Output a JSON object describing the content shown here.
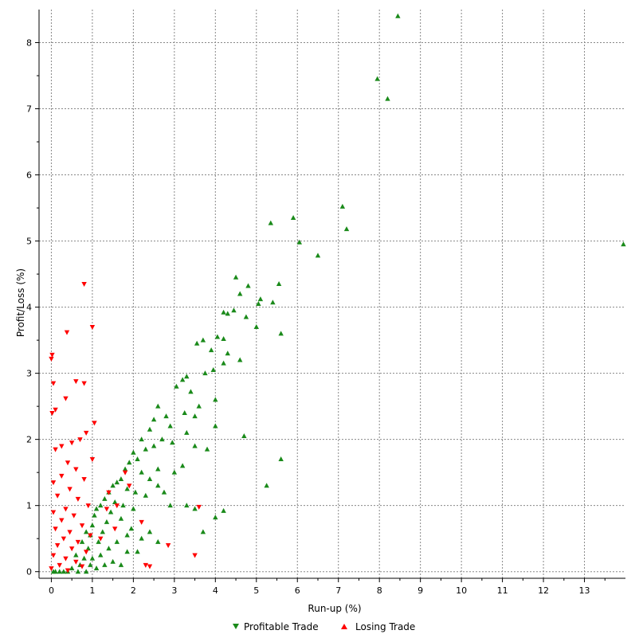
{
  "chart_data": {
    "type": "scatter",
    "xlabel": "Run-up (%)",
    "ylabel": "Profit/Loss (%)",
    "xlim": [
      -0.3,
      14.0
    ],
    "ylim": [
      -0.1,
      8.5
    ],
    "xticks": [
      0,
      1,
      2,
      3,
      4,
      5,
      6,
      7,
      8,
      9,
      10,
      11,
      12,
      13
    ],
    "yticks": [
      0,
      1,
      2,
      3,
      4,
      5,
      6,
      7,
      8
    ],
    "grid": true,
    "legend_position": "bottom",
    "colors": {
      "profitable": "#1a8a1a",
      "losing": "#ff0000",
      "grid": "#888888",
      "axis": "#000000"
    },
    "series": [
      {
        "name": "Profitable Trade",
        "marker": "triangle-up",
        "points": [
          [
            8.45,
            8.4
          ],
          [
            7.95,
            7.45
          ],
          [
            8.2,
            7.15
          ],
          [
            5.9,
            5.35
          ],
          [
            7.1,
            5.52
          ],
          [
            7.2,
            5.18
          ],
          [
            6.05,
            4.98
          ],
          [
            6.5,
            4.78
          ],
          [
            5.35,
            5.27
          ],
          [
            13.95,
            4.95
          ],
          [
            4.5,
            4.45
          ],
          [
            4.8,
            4.32
          ],
          [
            5.55,
            4.35
          ],
          [
            4.6,
            4.2
          ],
          [
            5.1,
            4.12
          ],
          [
            5.05,
            4.05
          ],
          [
            5.4,
            4.07
          ],
          [
            4.2,
            3.92
          ],
          [
            4.3,
            3.9
          ],
          [
            4.45,
            3.95
          ],
          [
            4.75,
            3.85
          ],
          [
            5.0,
            3.7
          ],
          [
            4.05,
            3.55
          ],
          [
            3.7,
            3.5
          ],
          [
            4.2,
            3.52
          ],
          [
            5.6,
            3.6
          ],
          [
            4.6,
            3.2
          ],
          [
            3.55,
            3.45
          ],
          [
            3.9,
            3.35
          ],
          [
            4.3,
            3.3
          ],
          [
            4.2,
            3.15
          ],
          [
            3.75,
            3.0
          ],
          [
            3.95,
            3.05
          ],
          [
            3.3,
            2.95
          ],
          [
            3.2,
            2.9
          ],
          [
            3.05,
            2.8
          ],
          [
            3.4,
            2.72
          ],
          [
            4.0,
            2.6
          ],
          [
            3.6,
            2.5
          ],
          [
            3.25,
            2.4
          ],
          [
            2.8,
            2.35
          ],
          [
            3.5,
            2.35
          ],
          [
            2.6,
            2.5
          ],
          [
            2.5,
            2.3
          ],
          [
            2.9,
            2.2
          ],
          [
            4.0,
            2.2
          ],
          [
            3.3,
            2.1
          ],
          [
            2.4,
            2.15
          ],
          [
            2.7,
            2.0
          ],
          [
            2.95,
            1.95
          ],
          [
            3.5,
            1.9
          ],
          [
            2.2,
            2.0
          ],
          [
            2.3,
            1.85
          ],
          [
            2.5,
            1.9
          ],
          [
            2.0,
            1.8
          ],
          [
            2.1,
            1.7
          ],
          [
            1.9,
            1.65
          ],
          [
            1.8,
            1.55
          ],
          [
            2.2,
            1.5
          ],
          [
            2.6,
            1.55
          ],
          [
            3.2,
            1.6
          ],
          [
            4.7,
            2.05
          ],
          [
            5.6,
            1.7
          ],
          [
            5.25,
            1.3
          ],
          [
            3.8,
            1.85
          ],
          [
            2.4,
            1.4
          ],
          [
            2.6,
            1.3
          ],
          [
            3.0,
            1.5
          ],
          [
            2.75,
            1.2
          ],
          [
            1.7,
            1.4
          ],
          [
            1.6,
            1.35
          ],
          [
            1.5,
            1.3
          ],
          [
            1.85,
            1.25
          ],
          [
            2.05,
            1.2
          ],
          [
            2.3,
            1.15
          ],
          [
            1.4,
            1.2
          ],
          [
            1.3,
            1.1
          ],
          [
            1.55,
            1.05
          ],
          [
            1.75,
            1.0
          ],
          [
            1.2,
            1.0
          ],
          [
            1.1,
            0.95
          ],
          [
            1.45,
            0.9
          ],
          [
            2.0,
            0.95
          ],
          [
            2.9,
            1.0
          ],
          [
            3.3,
            1.0
          ],
          [
            3.5,
            0.95
          ],
          [
            4.2,
            0.92
          ],
          [
            4.0,
            0.82
          ],
          [
            3.7,
            0.6
          ],
          [
            2.4,
            0.6
          ],
          [
            2.6,
            0.45
          ],
          [
            2.2,
            0.5
          ],
          [
            1.95,
            0.65
          ],
          [
            1.7,
            0.8
          ],
          [
            1.85,
            0.55
          ],
          [
            1.6,
            0.45
          ],
          [
            1.35,
            0.75
          ],
          [
            1.25,
            0.6
          ],
          [
            1.05,
            0.85
          ],
          [
            1.0,
            0.7
          ],
          [
            0.95,
            0.55
          ],
          [
            1.15,
            0.45
          ],
          [
            1.4,
            0.35
          ],
          [
            0.9,
            0.35
          ],
          [
            0.85,
            0.6
          ],
          [
            0.75,
            0.45
          ],
          [
            0.8,
            0.2
          ],
          [
            1.0,
            0.2
          ],
          [
            1.2,
            0.25
          ],
          [
            0.7,
            0.1
          ],
          [
            0.6,
            0.25
          ],
          [
            0.5,
            0.05
          ],
          [
            0.4,
            0.0
          ],
          [
            0.3,
            0.0
          ],
          [
            0.2,
            0.0
          ],
          [
            0.1,
            0.0
          ],
          [
            0.05,
            0.0
          ],
          [
            1.7,
            0.1
          ],
          [
            1.85,
            0.3
          ],
          [
            2.1,
            0.3
          ],
          [
            1.5,
            0.15
          ],
          [
            0.95,
            0.1
          ],
          [
            1.1,
            0.05
          ],
          [
            1.3,
            0.1
          ],
          [
            0.65,
            0.0
          ],
          [
            0.85,
            0.0
          ]
        ]
      },
      {
        "name": "Losing Trade",
        "marker": "triangle-down",
        "points": [
          [
            0.8,
            4.35
          ],
          [
            1.0,
            3.7
          ],
          [
            0.38,
            3.62
          ],
          [
            0.02,
            3.28
          ],
          [
            0.0,
            3.22
          ],
          [
            0.05,
            2.85
          ],
          [
            0.6,
            2.88
          ],
          [
            0.8,
            2.85
          ],
          [
            0.35,
            2.62
          ],
          [
            0.1,
            2.45
          ],
          [
            0.02,
            2.4
          ],
          [
            1.05,
            2.25
          ],
          [
            0.85,
            2.1
          ],
          [
            0.7,
            2.0
          ],
          [
            0.5,
            1.95
          ],
          [
            0.25,
            1.9
          ],
          [
            0.1,
            1.85
          ],
          [
            1.0,
            1.7
          ],
          [
            0.4,
            1.65
          ],
          [
            0.6,
            1.55
          ],
          [
            0.25,
            1.45
          ],
          [
            0.8,
            1.4
          ],
          [
            0.05,
            1.35
          ],
          [
            0.45,
            1.25
          ],
          [
            0.15,
            1.15
          ],
          [
            0.65,
            1.1
          ],
          [
            0.9,
            1.0
          ],
          [
            0.35,
            0.95
          ],
          [
            0.05,
            0.9
          ],
          [
            0.55,
            0.85
          ],
          [
            0.25,
            0.78
          ],
          [
            0.75,
            0.7
          ],
          [
            0.1,
            0.65
          ],
          [
            0.45,
            0.6
          ],
          [
            0.95,
            0.55
          ],
          [
            0.3,
            0.5
          ],
          [
            0.65,
            0.45
          ],
          [
            0.15,
            0.4
          ],
          [
            0.5,
            0.35
          ],
          [
            0.85,
            0.3
          ],
          [
            0.05,
            0.25
          ],
          [
            0.35,
            0.2
          ],
          [
            0.6,
            0.15
          ],
          [
            0.2,
            0.1
          ],
          [
            0.75,
            0.08
          ],
          [
            0.0,
            0.05
          ],
          [
            0.4,
            0.02
          ],
          [
            1.4,
            1.2
          ],
          [
            1.8,
            1.5
          ],
          [
            1.35,
            0.95
          ],
          [
            1.55,
            0.65
          ],
          [
            1.2,
            0.5
          ],
          [
            2.2,
            0.75
          ],
          [
            3.6,
            0.98
          ],
          [
            2.85,
            0.4
          ],
          [
            3.5,
            0.25
          ],
          [
            2.3,
            0.1
          ],
          [
            2.4,
            0.08
          ],
          [
            1.9,
            1.3
          ],
          [
            1.6,
            1.0
          ]
        ]
      }
    ]
  }
}
